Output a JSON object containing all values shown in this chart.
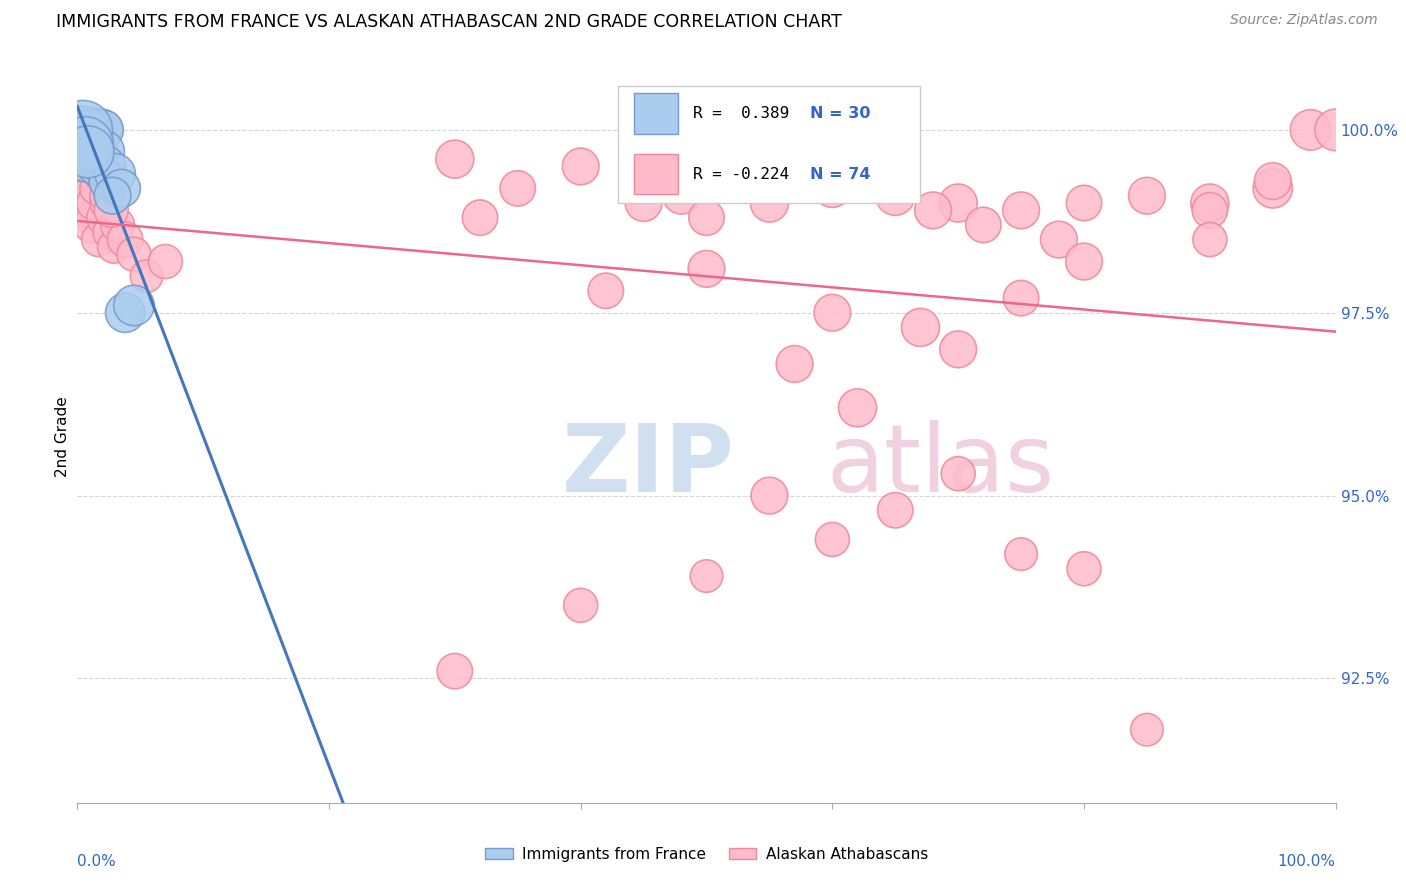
{
  "title": "IMMIGRANTS FROM FRANCE VS ALASKAN ATHABASCAN 2ND GRADE CORRELATION CHART",
  "source_text": "Source: ZipAtlas.com",
  "ylabel": "2nd Grade",
  "y_tick_values": [
    92.5,
    95.0,
    97.5,
    100.0
  ],
  "ylim": [
    90.8,
    100.8
  ],
  "xlim": [
    0.0,
    100.0
  ],
  "legend_r_blue": "R =  0.389",
  "legend_n_blue": "N = 30",
  "legend_r_pink": "R = -0.224",
  "legend_n_pink": "N = 74",
  "legend_label_blue": "Immigrants from France",
  "legend_label_pink": "Alaskan Athabascans",
  "blue_face_color": "#aaccee",
  "blue_edge_color": "#7799cc",
  "pink_face_color": "#ffbbcc",
  "pink_edge_color": "#ee8899",
  "blue_line_color": "#4477bb",
  "pink_line_color": "#ee6688",
  "watermark_zip_color": "#ccddeeff",
  "watermark_atlas_color": "#eeccddff",
  "blue_scatter_x": [
    0.3,
    0.5,
    0.7,
    0.9,
    1.1,
    1.3,
    1.5,
    1.7,
    1.9,
    2.1,
    0.4,
    0.6,
    0.8,
    1.0,
    1.2,
    1.4,
    1.6,
    1.8,
    2.0,
    2.2,
    2.5,
    3.0,
    3.5,
    2.8,
    0.25,
    0.45,
    0.65,
    0.85,
    3.8,
    4.5
  ],
  "blue_scatter_y": [
    100.0,
    100.0,
    100.0,
    100.0,
    100.0,
    100.0,
    100.0,
    100.0,
    100.0,
    100.0,
    99.8,
    99.7,
    99.6,
    99.8,
    99.9,
    99.7,
    99.5,
    99.6,
    99.7,
    99.5,
    99.3,
    99.4,
    99.2,
    99.1,
    99.9,
    100.0,
    99.8,
    99.7,
    97.5,
    97.6
  ],
  "blue_scatter_sizes": [
    120,
    100,
    110,
    90,
    85,
    95,
    80,
    75,
    90,
    80,
    150,
    130,
    110,
    100,
    90,
    85,
    80,
    75,
    100,
    90,
    80,
    85,
    75,
    70,
    200,
    180,
    160,
    140,
    80,
    85
  ],
  "pink_scatter_x": [
    0.2,
    0.4,
    0.6,
    0.8,
    1.0,
    1.2,
    1.4,
    1.6,
    1.8,
    2.0,
    0.3,
    0.5,
    0.7,
    0.9,
    1.1,
    1.3,
    1.5,
    1.7,
    1.9,
    2.1,
    2.3,
    2.6,
    2.9,
    3.2,
    3.8,
    4.5,
    5.5,
    7.0,
    2.4,
    2.7,
    30.0,
    40.0,
    47.0,
    50.0,
    60.0,
    65.0,
    70.0,
    75.0,
    80.0,
    85.0,
    90.0,
    95.0,
    98.0,
    100.0,
    32.0,
    48.0,
    55.0,
    68.0,
    72.0,
    78.0,
    42.0,
    60.0,
    67.0,
    57.0,
    35.0,
    45.0,
    50.0,
    55.0,
    62.0,
    70.0,
    75.0,
    80.0,
    90.0,
    95.0,
    30.0,
    40.0,
    50.0,
    60.0,
    65.0,
    70.0,
    75.0,
    80.0,
    85.0,
    90.0
  ],
  "pink_scatter_y": [
    99.8,
    99.6,
    99.4,
    99.2,
    99.0,
    98.8,
    99.3,
    99.5,
    99.7,
    99.4,
    99.6,
    99.3,
    99.1,
    98.9,
    98.7,
    99.0,
    99.2,
    98.5,
    99.4,
    98.8,
    99.0,
    98.6,
    98.4,
    98.7,
    98.5,
    98.3,
    98.0,
    98.2,
    99.1,
    98.9,
    99.6,
    99.5,
    99.3,
    98.1,
    99.2,
    99.1,
    99.0,
    98.9,
    99.0,
    99.1,
    99.0,
    99.2,
    100.0,
    100.0,
    98.8,
    99.1,
    99.0,
    98.9,
    98.7,
    98.5,
    97.8,
    97.5,
    97.3,
    96.8,
    99.2,
    99.0,
    98.8,
    95.0,
    96.2,
    97.0,
    97.7,
    98.2,
    98.9,
    99.3,
    92.6,
    93.5,
    93.9,
    94.4,
    94.8,
    95.3,
    94.2,
    94.0,
    91.8,
    98.5
  ],
  "pink_scatter_sizes": [
    70,
    65,
    60,
    65,
    70,
    65,
    60,
    65,
    70,
    75,
    65,
    60,
    55,
    60,
    65,
    60,
    55,
    60,
    65,
    60,
    55,
    60,
    55,
    60,
    65,
    60,
    55,
    60,
    65,
    60,
    75,
    70,
    65,
    70,
    75,
    80,
    75,
    70,
    65,
    70,
    75,
    80,
    85,
    90,
    65,
    70,
    75,
    70,
    65,
    70,
    65,
    70,
    75,
    70,
    65,
    70,
    65,
    70,
    75,
    70,
    65,
    70,
    65,
    70,
    65,
    60,
    55,
    60,
    65,
    60,
    55,
    60,
    55,
    60
  ]
}
